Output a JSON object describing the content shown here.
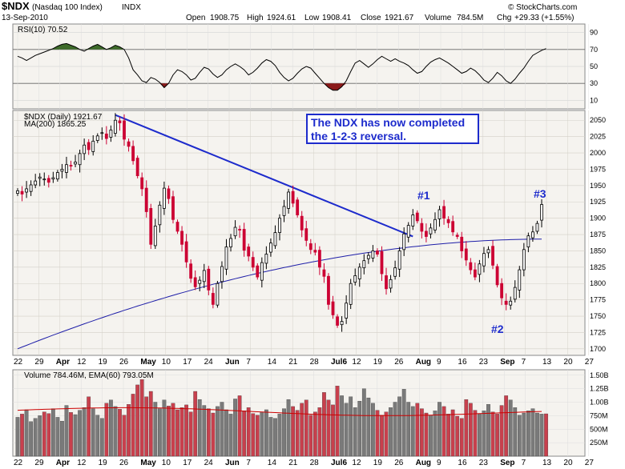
{
  "header": {
    "symbol": "$NDX",
    "name": "(Nasdaq 100 Index)",
    "exchange": "INDX",
    "date": "13-Sep-2010",
    "open_label": "Open",
    "open": "1908.75",
    "high_label": "High",
    "high": "1924.61",
    "low_label": "Low",
    "low": "1908.41",
    "close_label": "Close",
    "close": "1921.67",
    "volume_label": "Volume",
    "volume": "784.5M",
    "chg_label": "Chg",
    "chg": "+29.33 (+1.55%)",
    "logo": "© StockCharts.com"
  },
  "annotation": {
    "line1": "The NDX has now completed",
    "line2": "the 1-2-3 reversal."
  },
  "markers": [
    "#1",
    "#2",
    "#3"
  ],
  "colors": {
    "up": "#ffffff",
    "down": "#cc0033",
    "ma": "#1e1ea8",
    "trendline": "#1d2bcc",
    "rsi_fill": "#3e6b2a",
    "rsi_oversold": "#8b1a1a",
    "panel_bg": "#f5f3ef",
    "vol_up": "#7a7a7a",
    "vol_down": "#c8404d",
    "ema": "#cc0000",
    "marker": "#1d2bcc"
  },
  "chart_data": [
    {
      "type": "line",
      "title": "RSI(10) 70.52",
      "ylim": [
        0,
        100
      ],
      "yticks": [
        10,
        30,
        50,
        70,
        90
      ],
      "series": [
        {
          "name": "RSI(10)",
          "values": [
            62,
            60,
            57,
            60,
            63,
            65,
            67,
            69,
            71,
            74,
            76,
            77,
            75,
            73,
            70,
            68,
            71,
            74,
            76,
            73,
            70,
            72,
            75,
            73,
            70,
            60,
            46,
            40,
            33,
            31,
            37,
            35,
            31,
            25,
            30,
            40,
            46,
            44,
            40,
            34,
            36,
            43,
            49,
            47,
            41,
            37,
            40,
            46,
            50,
            53,
            50,
            46,
            40,
            43,
            48,
            54,
            58,
            56,
            51,
            43,
            37,
            33,
            36,
            42,
            47,
            50,
            48,
            42,
            36,
            30,
            25,
            22,
            22,
            26,
            33,
            44,
            54,
            57,
            53,
            49,
            53,
            58,
            62,
            59,
            56,
            59,
            56,
            54,
            51,
            46,
            42,
            44,
            50,
            55,
            58,
            60,
            57,
            54,
            50,
            46,
            42,
            44,
            48,
            45,
            40,
            34,
            31,
            36,
            43,
            39,
            33,
            30,
            35,
            42,
            48,
            56,
            63,
            66,
            69,
            71
          ]
        }
      ]
    },
    {
      "type": "bar",
      "title": "$NDX (Daily) 1921.67",
      "legend": [
        "$NDX (Daily) 1921.67",
        "MA(200) 1865.25"
      ],
      "ylim": [
        1690,
        2065
      ],
      "yticks": [
        1700,
        1725,
        1750,
        1775,
        1800,
        1825,
        1850,
        1875,
        1900,
        1925,
        1950,
        1975,
        2000,
        2025,
        2050
      ],
      "x_ticks": [
        "22",
        "29",
        "Apr",
        "12",
        "19",
        "26",
        "May",
        "10",
        "17",
        "24",
        "Jun",
        "7",
        "14",
        "21",
        "28",
        "Jul6",
        "12",
        "19",
        "26",
        "Aug",
        "9",
        "16",
        "23",
        "Sep",
        "7",
        "13",
        "20",
        "27"
      ],
      "series": [
        {
          "name": "$NDX (Daily) 1921.67",
          "values": [
            1942,
            1937,
            1945,
            1951,
            1957,
            1963,
            1960,
            1955,
            1962,
            1970,
            1975,
            1982,
            1980,
            1986,
            1999,
            2012,
            2005,
            2018,
            2026,
            2031,
            2022,
            2035,
            2050,
            2046,
            2021,
            2010,
            1988,
            1965,
            1945,
            1910,
            1860,
            1888,
            1920,
            1946,
            1930,
            1898,
            1880,
            1860,
            1833,
            1808,
            1795,
            1805,
            1820,
            1790,
            1768,
            1800,
            1826,
            1856,
            1869,
            1886,
            1882,
            1851,
            1842,
            1825,
            1810,
            1832,
            1845,
            1862,
            1878,
            1900,
            1918,
            1940,
            1923,
            1905,
            1882,
            1866,
            1852,
            1848,
            1825,
            1811,
            1768,
            1752,
            1736,
            1742,
            1770,
            1800,
            1812,
            1825,
            1835,
            1843,
            1850,
            1845,
            1815,
            1792,
            1806,
            1824,
            1850,
            1876,
            1889,
            1905,
            1896,
            1880,
            1872,
            1885,
            1898,
            1913,
            1900,
            1893,
            1879,
            1872,
            1850,
            1836,
            1821,
            1810,
            1830,
            1846,
            1852,
            1828,
            1798,
            1778,
            1768,
            1773,
            1794,
            1821,
            1852,
            1873,
            1879,
            1892,
            1921
          ]
        },
        {
          "name": "MA(200) 1865.25",
          "values": [
            1700,
            1868
          ]
        }
      ]
    },
    {
      "type": "bar",
      "title": "Volume 784.46M, EMA(60) 793.05M",
      "ylim": [
        0,
        1600
      ],
      "yticks_label": [
        "250M",
        "500M",
        "750M",
        "1.00B",
        "1.25B",
        "1.50B"
      ],
      "series": [
        {
          "name": "Volume",
          "values": [
            720,
            780,
            860,
            640,
            700,
            750,
            820,
            790,
            880,
            720,
            650,
            940,
            810,
            770,
            850,
            900,
            1100,
            880,
            760,
            700,
            980,
            1040,
            920,
            870,
            760,
            960,
            1150,
            1320,
            1420,
            1100,
            1200,
            1000,
            880,
            1040,
            930,
            980,
            860,
            900,
            950,
            820,
            1200,
            1050,
            940,
            880,
            800,
            920,
            1000,
            860,
            780,
            1060,
            1120,
            840,
            900,
            790,
            760,
            820,
            860,
            720,
            700,
            780,
            880,
            1050,
            920,
            850,
            980,
            1040,
            760,
            820,
            900,
            1180,
            1040,
            950,
            1300,
            1120,
            980,
            1100,
            900,
            1020,
            1250,
            1080,
            980,
            850,
            760,
            820,
            900,
            1000,
            1100,
            1240,
            1000,
            920,
            980,
            880,
            800,
            760,
            840,
            1000,
            920,
            780,
            860,
            740,
            700,
            1050,
            980,
            850,
            780,
            840,
            960,
            820,
            780,
            940,
            1120,
            1040,
            900,
            760,
            800,
            840,
            880,
            800,
            780,
            785
          ]
        },
        {
          "name": "EMA(60)",
          "values": [
            850,
            793
          ]
        }
      ]
    }
  ],
  "axis": {
    "rsi_ticks": [
      "90",
      "70",
      "50",
      "30",
      "10"
    ],
    "price_ticks": [
      "2050",
      "2025",
      "2000",
      "1975",
      "1950",
      "1925",
      "1900",
      "1875",
      "1850",
      "1825",
      "1800",
      "1775",
      "1750",
      "1725",
      "1700"
    ],
    "vol_ticks": [
      "1.50B",
      "1.25B",
      "1.00B",
      "750M",
      "500M",
      "250M"
    ],
    "x_labels": [
      "22",
      "29",
      "Apr",
      "12",
      "19",
      "26",
      "May",
      "10",
      "17",
      "24",
      "Jun",
      "7",
      "14",
      "21",
      "28",
      "Jul6",
      "12",
      "19",
      "26",
      "Aug",
      "9",
      "16",
      "23",
      "Sep",
      "7",
      "13",
      "20",
      "27"
    ]
  }
}
